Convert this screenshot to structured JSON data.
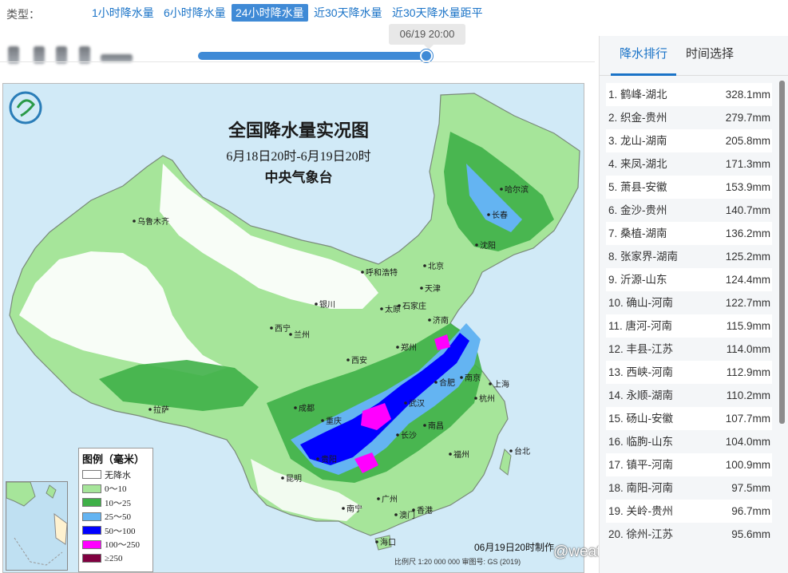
{
  "type_bar": {
    "label": "类型：",
    "tabs": [
      {
        "label": "1小时降水量",
        "active": false
      },
      {
        "label": "6小时降水量",
        "active": false
      },
      {
        "label": "24小时降水量",
        "active": true
      },
      {
        "label": "近30天降水量",
        "active": false
      },
      {
        "label": "近30天降水量距平",
        "active": false
      }
    ]
  },
  "timeline": {
    "tooltip": "06/19 20:00",
    "progress_fraction": 0.98
  },
  "map": {
    "title": "全国降水量实况图",
    "subtitle": "6月18日20时-6月19日20时",
    "issuer": "中央气象台",
    "footer": "06月19日20时制作",
    "scale_note": "比例尺 1:20 000 000    审图号: GS (2019)",
    "cities": [
      {
        "name": "哈尔滨"
      },
      {
        "name": "长春"
      },
      {
        "name": "乌鲁木齐"
      },
      {
        "name": "沈阳"
      },
      {
        "name": "北京"
      },
      {
        "name": "呼和浩特"
      },
      {
        "name": "天津"
      },
      {
        "name": "银川"
      },
      {
        "name": "石家庄"
      },
      {
        "name": "太原"
      },
      {
        "name": "济南"
      },
      {
        "name": "西宁"
      },
      {
        "name": "兰州"
      },
      {
        "name": "郑州"
      },
      {
        "name": "西安"
      },
      {
        "name": "南京"
      },
      {
        "name": "合肥"
      },
      {
        "name": "上海"
      },
      {
        "name": "武汉"
      },
      {
        "name": "杭州"
      },
      {
        "name": "成都"
      },
      {
        "name": "拉萨"
      },
      {
        "name": "重庆"
      },
      {
        "name": "南昌"
      },
      {
        "name": "长沙"
      },
      {
        "name": "贵阳"
      },
      {
        "name": "福州"
      },
      {
        "name": "台北"
      },
      {
        "name": "昆明"
      },
      {
        "name": "广州"
      },
      {
        "name": "南宁"
      },
      {
        "name": "香港"
      },
      {
        "name": "澳门"
      },
      {
        "name": "海口"
      }
    ],
    "legend": {
      "title": "图例（毫米）",
      "items": [
        {
          "label": "无降水",
          "color": "#ffffff"
        },
        {
          "label": "0～10",
          "color": "#a6e59a"
        },
        {
          "label": "10～25",
          "color": "#3fb048"
        },
        {
          "label": "25～50",
          "color": "#64b4f2"
        },
        {
          "label": "50～100",
          "color": "#0000ff"
        },
        {
          "label": "100～250",
          "color": "#ff00ff"
        },
        {
          "label": "≥250",
          "color": "#800040"
        }
      ]
    },
    "watermark": "@weatherman_信欣",
    "colors": {
      "sea": "#b9dff3",
      "land_base": "#a6e59a",
      "moderate": "#3fb048",
      "heavy": "#64b4f2",
      "storm": "#0000ff",
      "extreme": "#ff00ff"
    }
  },
  "right_panel": {
    "tabs": [
      {
        "label": "降水排行",
        "active": true
      },
      {
        "label": "时间选择",
        "active": false
      }
    ],
    "ranking": [
      {
        "label": "1. 鹤峰-湖北",
        "value": "328.1mm"
      },
      {
        "label": "2. 织金-贵州",
        "value": "279.7mm"
      },
      {
        "label": "3. 龙山-湖南",
        "value": "205.8mm"
      },
      {
        "label": "4. 来凤-湖北",
        "value": "171.3mm"
      },
      {
        "label": "5. 萧县-安徽",
        "value": "153.9mm"
      },
      {
        "label": "6. 金沙-贵州",
        "value": "140.7mm"
      },
      {
        "label": "7. 桑植-湖南",
        "value": "136.2mm"
      },
      {
        "label": "8. 张家界-湖南",
        "value": "125.2mm"
      },
      {
        "label": "9. 沂源-山东",
        "value": "124.4mm"
      },
      {
        "label": "10. 确山-河南",
        "value": "122.7mm"
      },
      {
        "label": "11. 唐河-河南",
        "value": "115.9mm"
      },
      {
        "label": "12. 丰县-江苏",
        "value": "114.0mm"
      },
      {
        "label": "13. 西峡-河南",
        "value": "112.9mm"
      },
      {
        "label": "14. 永顺-湖南",
        "value": "110.2mm"
      },
      {
        "label": "15. 砀山-安徽",
        "value": "107.7mm"
      },
      {
        "label": "16. 临朐-山东",
        "value": "104.0mm"
      },
      {
        "label": "17. 镇平-河南",
        "value": "100.9mm"
      },
      {
        "label": "18. 南阳-河南",
        "value": "97.5mm"
      },
      {
        "label": "19. 关岭-贵州",
        "value": "96.7mm"
      },
      {
        "label": "20. 徐州-江苏",
        "value": "95.6mm"
      }
    ]
  }
}
